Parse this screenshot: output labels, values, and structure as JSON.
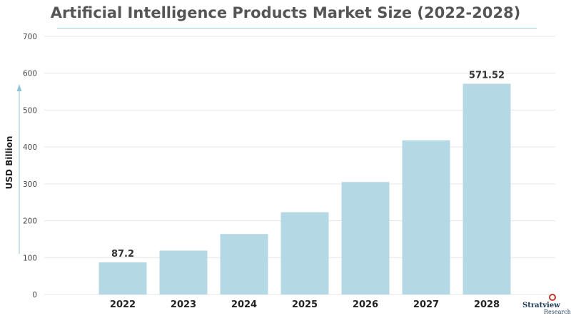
{
  "chart_data": {
    "type": "bar",
    "title": "Artificial Intelligence Products Market Size (2022-2028)",
    "xlabel": "",
    "ylabel": "USD Billion",
    "categories": [
      "2022",
      "2023",
      "2024",
      "2025",
      "2026",
      "2027",
      "2028"
    ],
    "values": [
      87.2,
      119,
      164,
      223,
      305,
      418,
      571.52
    ],
    "data_labels": [
      {
        "category": "2022",
        "text": "87.2"
      },
      {
        "category": "2028",
        "text": "571.52"
      }
    ],
    "ylim": [
      0,
      700
    ],
    "yticks": [
      0,
      100,
      200,
      300,
      400,
      500,
      600,
      700
    ],
    "grid": true,
    "bar_color": "#b5d8e5",
    "grid_color": "#e6e6e6"
  },
  "brand": {
    "name": "Stratview",
    "sub": "Research"
  }
}
